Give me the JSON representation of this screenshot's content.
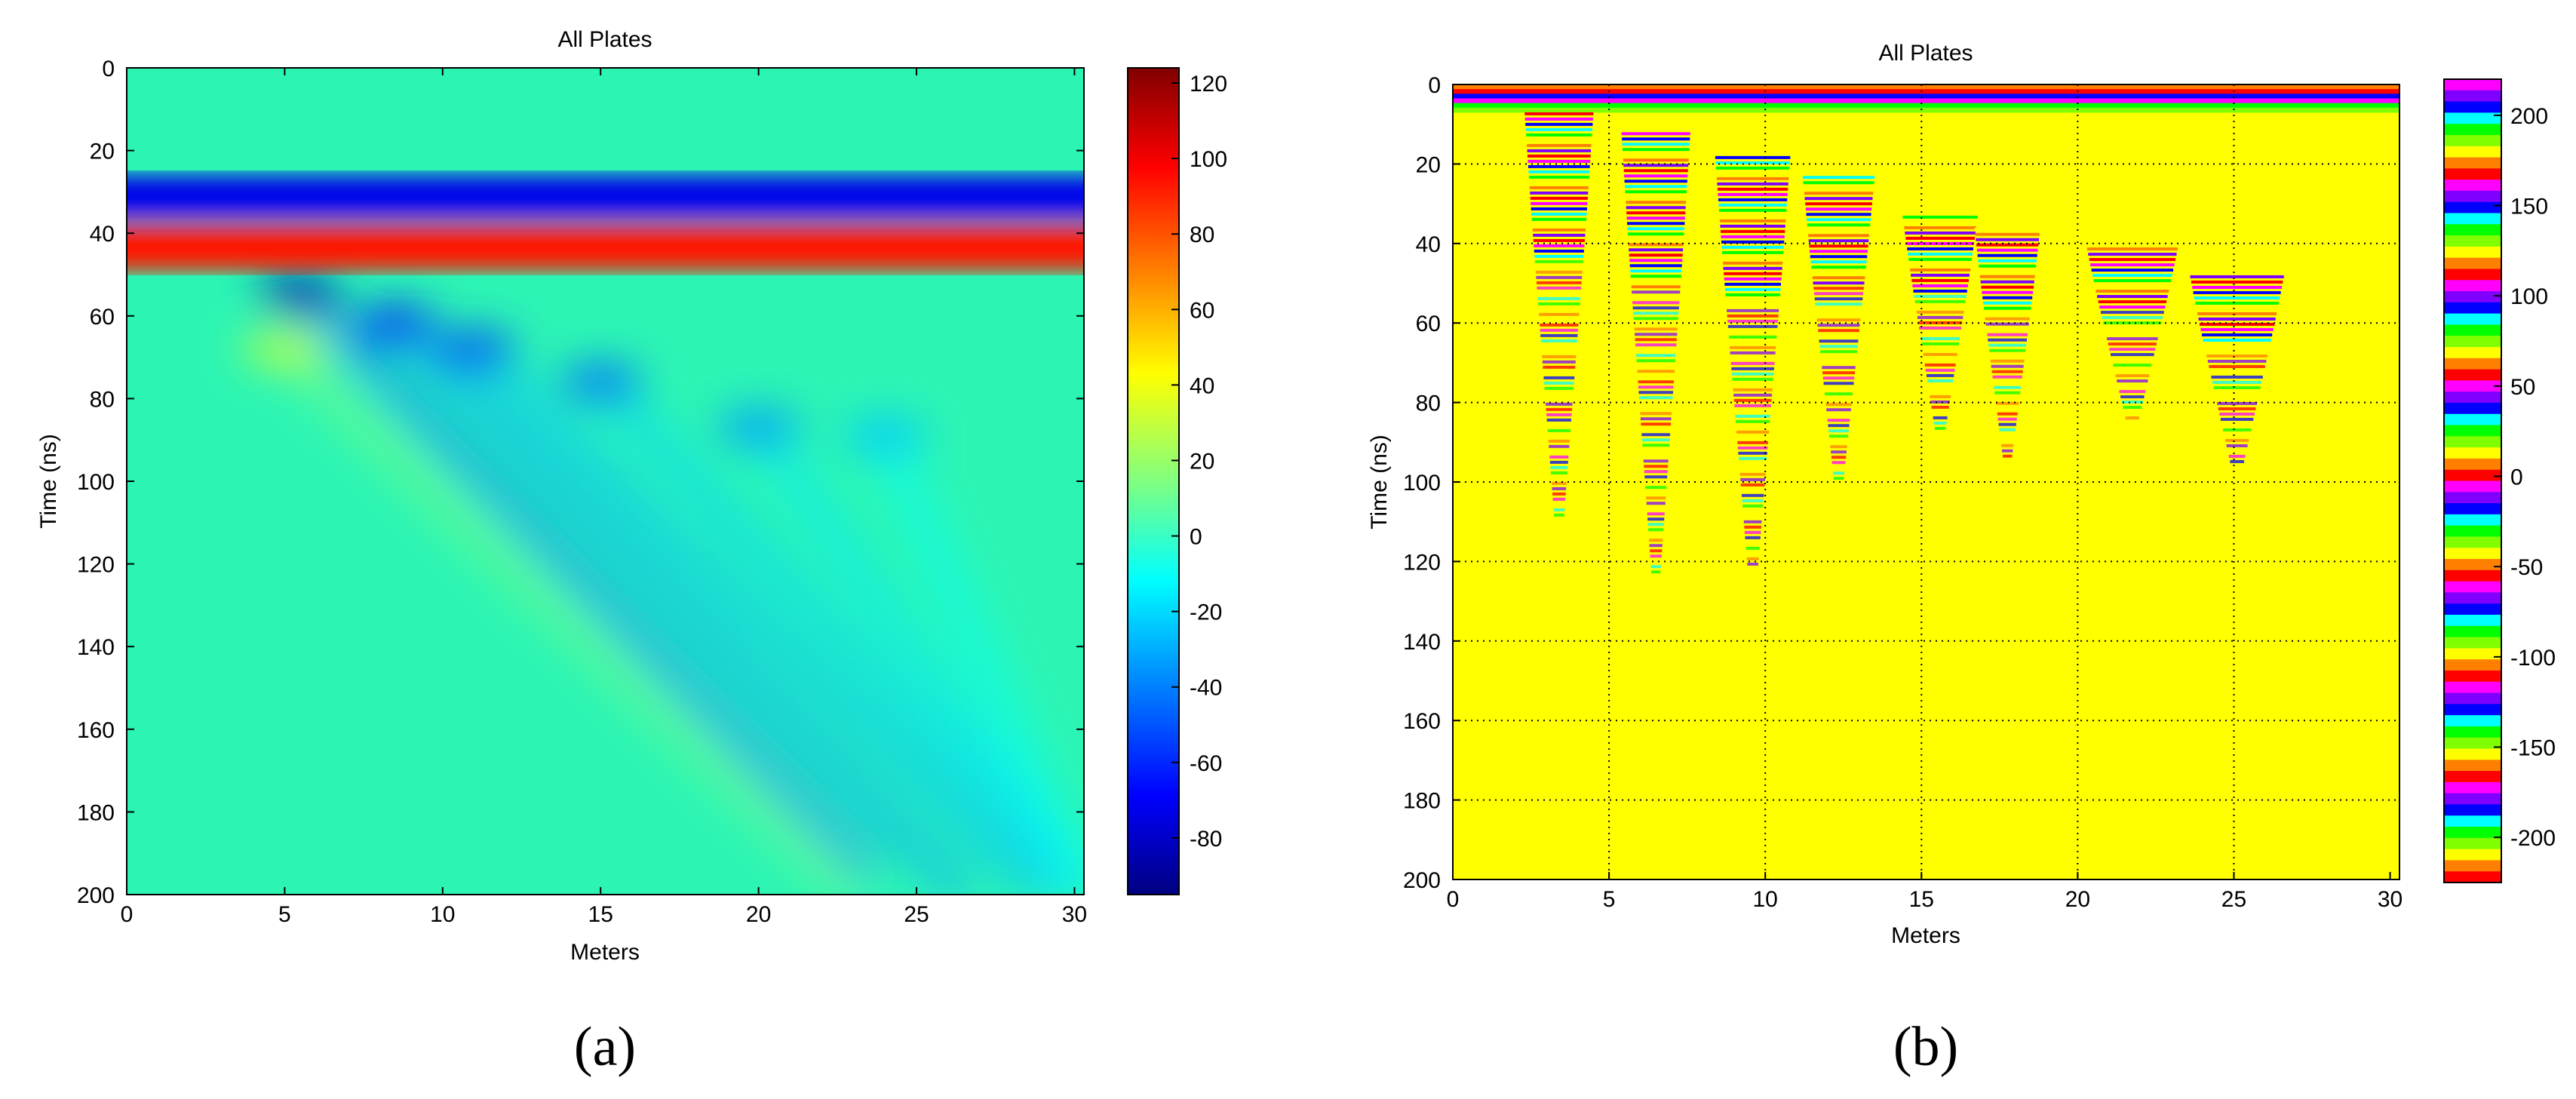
{
  "chart_data": [
    {
      "panel": "a",
      "type": "heatmap",
      "title": "All Plates",
      "xlabel": "Meters",
      "ylabel": "Time (ns)",
      "xlim": [
        0,
        30.3
      ],
      "ylim": [
        0,
        200
      ],
      "y_reversed": true,
      "xticks": [
        0,
        5,
        10,
        15,
        20,
        25,
        30
      ],
      "yticks": [
        0,
        20,
        40,
        60,
        80,
        100,
        120,
        140,
        160,
        180,
        200
      ],
      "colormap": "jet",
      "colorbar": {
        "range": [
          -95,
          124
        ],
        "ticks": [
          120,
          100,
          80,
          60,
          40,
          20,
          0,
          -20,
          -40,
          -60,
          -80
        ]
      },
      "background_value": 0,
      "bands": [
        {
          "y_from": 26,
          "y_to": 36,
          "value": -72
        },
        {
          "y_from": 38,
          "y_to": 49,
          "value": 92
        }
      ],
      "hyperbola_features": [
        {
          "apex_x": 5.5,
          "apex_y": 55,
          "value": -85
        },
        {
          "apex_x": 8.5,
          "apex_y": 62,
          "value": -65
        },
        {
          "apex_x": 11,
          "apex_y": 68,
          "value": -55
        },
        {
          "apex_x": 15,
          "apex_y": 76,
          "value": -45
        },
        {
          "apex_x": 20,
          "apex_y": 87,
          "value": -35
        },
        {
          "apex_x": 24,
          "apex_y": 89,
          "value": -25
        },
        {
          "apex_x": 5,
          "apex_y": 68,
          "value": 30
        }
      ]
    },
    {
      "panel": "b",
      "type": "heatmap",
      "title": "All Plates",
      "xlabel": "Meters",
      "ylabel": "Time (ns)",
      "xlim": [
        0,
        30.3
      ],
      "ylim": [
        0,
        200
      ],
      "y_reversed": true,
      "xticks": [
        0,
        5,
        10,
        15,
        20,
        25,
        30
      ],
      "yticks": [
        0,
        20,
        40,
        60,
        80,
        100,
        120,
        140,
        160,
        180,
        200
      ],
      "grid": true,
      "colormap": "cyclic-banded",
      "background_color": "#FFFF00",
      "colorbar": {
        "range": [
          -225,
          220
        ],
        "ticks": [
          200,
          150,
          100,
          50,
          0,
          -50,
          -100,
          -150,
          -200
        ]
      },
      "top_band": {
        "y_from": 0,
        "y_to": 7
      },
      "diffraction_features": [
        {
          "x_from": 2.3,
          "x_to": 4.5,
          "y_top": 7,
          "y_bottom": 111
        },
        {
          "x_from": 5.4,
          "x_to": 7.6,
          "y_top": 12,
          "y_bottom": 124
        },
        {
          "x_from": 8.4,
          "x_to": 10.8,
          "y_top": 18,
          "y_bottom": 123
        },
        {
          "x_from": 11.2,
          "x_to": 13.5,
          "y_top": 23,
          "y_bottom": 101
        },
        {
          "x_from": 14.4,
          "x_to": 16.8,
          "y_top": 33,
          "y_bottom": 88
        },
        {
          "x_from": 16.7,
          "x_to": 18.8,
          "y_top": 36,
          "y_bottom": 95
        },
        {
          "x_from": 20.3,
          "x_to": 23.2,
          "y_top": 41,
          "y_bottom": 85
        },
        {
          "x_from": 23.6,
          "x_to": 26.6,
          "y_top": 48,
          "y_bottom": 97
        }
      ]
    }
  ],
  "panel_labels": {
    "a": "(a)",
    "b": "(b)"
  }
}
